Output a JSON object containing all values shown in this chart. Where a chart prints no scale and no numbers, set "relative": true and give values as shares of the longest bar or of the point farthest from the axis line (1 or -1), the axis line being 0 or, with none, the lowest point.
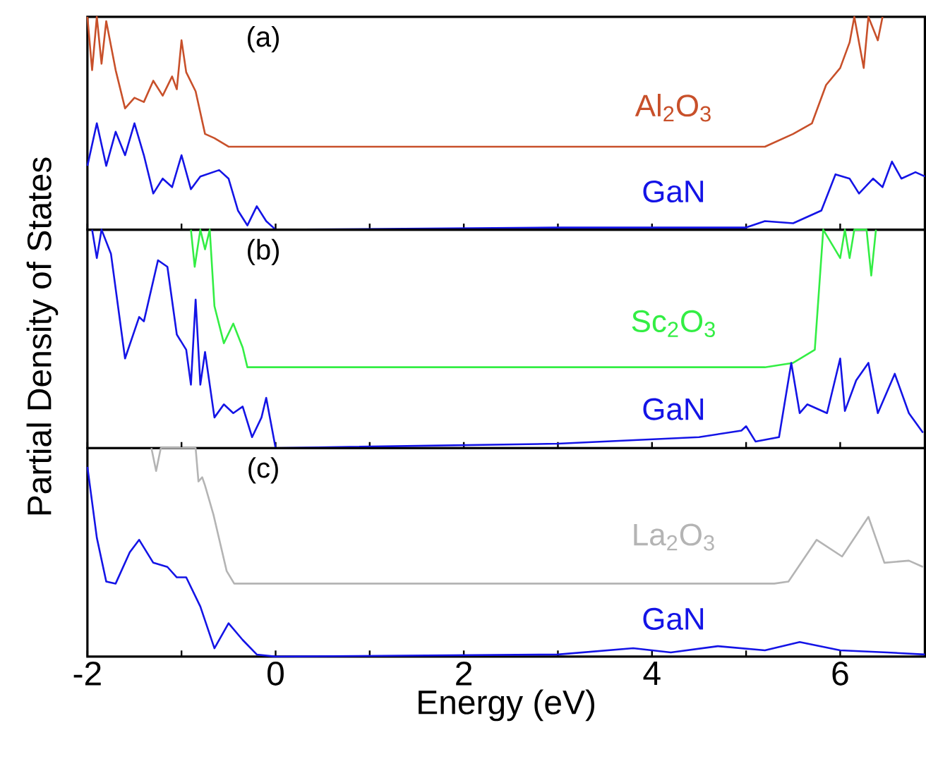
{
  "chart_data": [
    {
      "type": "line",
      "relative": true,
      "xlim": [
        -2,
        6.9
      ],
      "xticks": [
        -2,
        {
          "value": -1,
          "label": null
        },
        0,
        {
          "value": 1,
          "label": null
        },
        2,
        {
          "value": 3,
          "label": null
        },
        4,
        {
          "value": 5,
          "label": null
        },
        6
      ],
      "tick_labels": false,
      "annotations": [
        "(a)"
      ],
      "series": [
        {
          "name": "Al$_{2}$O$_{3}$",
          "color": "#c8502a",
          "x": [
            -2,
            -1.95,
            -1.9,
            -1.85,
            -1.8,
            -1.7,
            -1.6,
            -1.5,
            -1.4,
            -1.3,
            -1.2,
            -1.1,
            -1.05,
            -1.0,
            -0.95,
            -0.85,
            -0.75,
            -0.65,
            -0.5,
            0,
            5.2,
            5.5,
            5.7,
            5.85,
            6.0,
            6.1,
            6.15,
            6.25,
            6.3,
            6.4,
            6.45
          ],
          "values": [
            1,
            0.75,
            1,
            0.78,
            0.98,
            0.75,
            0.57,
            0.62,
            0.6,
            0.7,
            0.63,
            0.72,
            0.66,
            0.89,
            0.74,
            0.65,
            0.45,
            0.43,
            0.39,
            0.39,
            0.39,
            0.45,
            0.5,
            0.68,
            0.76,
            0.88,
            1,
            0.76,
            1,
            0.89,
            1
          ]
        },
        {
          "name": "GaN",
          "color": "#1414e6",
          "x": [
            -2,
            -1.9,
            -1.8,
            -1.7,
            -1.6,
            -1.5,
            -1.4,
            -1.3,
            -1.2,
            -1.1,
            -1.0,
            -0.9,
            -0.8,
            -0.6,
            -0.5,
            -0.4,
            -0.3,
            -0.2,
            -0.1,
            0,
            3,
            5,
            5.2,
            5.5,
            5.8,
            5.95,
            6.1,
            6.2,
            6.35,
            6.45,
            6.55,
            6.65,
            6.8,
            6.9
          ],
          "values": [
            0.3,
            0.5,
            0.3,
            0.46,
            0.35,
            0.5,
            0.35,
            0.17,
            0.24,
            0.2,
            0.35,
            0.19,
            0.25,
            0.28,
            0.24,
            0.09,
            0.02,
            0.11,
            0.04,
            0,
            0.01,
            0.01,
            0.04,
            0.03,
            0.09,
            0.26,
            0.24,
            0.17,
            0.24,
            0.2,
            0.32,
            0.24,
            0.27,
            0.25
          ]
        }
      ]
    },
    {
      "type": "line",
      "relative": true,
      "ylabel": "Partial Density of States",
      "xlim": [
        -2,
        6.9
      ],
      "xticks": [
        -2,
        {
          "value": -1,
          "label": null
        },
        0,
        {
          "value": 1,
          "label": null
        },
        2,
        {
          "value": 3,
          "label": null
        },
        4,
        {
          "value": 5,
          "label": null
        },
        6
      ],
      "tick_labels": false,
      "annotations": [
        "(b)"
      ],
      "series": [
        {
          "name": "Sc$_{2}$O$_{3}$",
          "color": "#33ee44",
          "x": [
            -0.9,
            -0.86,
            -0.8,
            -0.75,
            -0.7,
            -0.65,
            -0.55,
            -0.45,
            -0.35,
            -0.3,
            5.2,
            5.5,
            5.73,
            5.82,
            6.0,
            6.05,
            6.1,
            6.15,
            6.28,
            6.33,
            6.38
          ],
          "values": [
            1,
            0.83,
            1,
            0.91,
            1,
            0.65,
            0.48,
            0.57,
            0.46,
            0.37,
            0.37,
            0.39,
            0.45,
            1,
            0.87,
            1,
            0.87,
            1,
            1,
            0.79,
            1
          ]
        },
        {
          "name": "GaN",
          "color": "#1414e6",
          "x": [
            -1.95,
            -1.9,
            -1.85,
            -1.75,
            -1.6,
            -1.45,
            -1.4,
            -1.25,
            -1.15,
            -1.05,
            -0.95,
            -0.9,
            -0.85,
            -0.8,
            -0.75,
            -0.65,
            -0.55,
            -0.45,
            -0.35,
            -0.25,
            -0.15,
            -0.1,
            0,
            3,
            4.5,
            4.95,
            5.0,
            5.1,
            5.35,
            5.48,
            5.57,
            5.65,
            5.86,
            6.0,
            6.05,
            6.17,
            6.3,
            6.4,
            6.58,
            6.73,
            6.88
          ],
          "values": [
            1,
            0.87,
            1,
            0.89,
            0.41,
            0.6,
            0.58,
            0.86,
            0.83,
            0.52,
            0.45,
            0.29,
            0.68,
            0.29,
            0.44,
            0.14,
            0.2,
            0.16,
            0.19,
            0.05,
            0.14,
            0.23,
            0,
            0.02,
            0.05,
            0.08,
            0.1,
            0.03,
            0.05,
            0.39,
            0.16,
            0.2,
            0.16,
            0.41,
            0.17,
            0.31,
            0.39,
            0.16,
            0.34,
            0.16,
            0.07
          ]
        }
      ]
    },
    {
      "type": "line",
      "relative": true,
      "xlabel": "Energy (eV)",
      "xlim": [
        -2,
        6.9
      ],
      "xticks": [
        -2,
        {
          "value": -1,
          "label": null
        },
        0,
        {
          "value": 1,
          "label": null
        },
        2,
        {
          "value": 3,
          "label": null
        },
        4,
        {
          "value": 5,
          "label": null
        },
        6
      ],
      "tick_labels": "x",
      "annotations": [
        "(c)"
      ],
      "series": [
        {
          "name": "La$_{2}$O$_{3}$",
          "color": "#b4b4b4",
          "x": [
            -1.32,
            -1.27,
            -1.22,
            -0.85,
            -0.82,
            -0.78,
            -0.75,
            -0.66,
            -0.52,
            -0.44,
            5.3,
            5.45,
            5.75,
            6.02,
            6.3,
            6.47,
            6.73,
            6.88
          ],
          "values": [
            1,
            0.89,
            1,
            1,
            0.84,
            0.86,
            0.82,
            0.68,
            0.41,
            0.35,
            0.35,
            0.36,
            0.56,
            0.48,
            0.67,
            0.45,
            0.46,
            0.43
          ]
        },
        {
          "name": "GaN",
          "color": "#1414e6",
          "x": [
            -2,
            -1.9,
            -1.8,
            -1.7,
            -1.55,
            -1.45,
            -1.3,
            -1.15,
            -1.05,
            -0.95,
            -0.8,
            -0.65,
            -0.5,
            -0.35,
            -0.2,
            0,
            3,
            3.8,
            4.2,
            4.7,
            5.2,
            5.57,
            6.0,
            6.5,
            6.9
          ],
          "values": [
            0.91,
            0.57,
            0.36,
            0.35,
            0.5,
            0.56,
            0.45,
            0.43,
            0.38,
            0.38,
            0.24,
            0.04,
            0.16,
            0.08,
            0.01,
            0,
            0.01,
            0.04,
            0.02,
            0.05,
            0.03,
            0.07,
            0.03,
            0.02,
            0.01
          ]
        }
      ]
    }
  ]
}
